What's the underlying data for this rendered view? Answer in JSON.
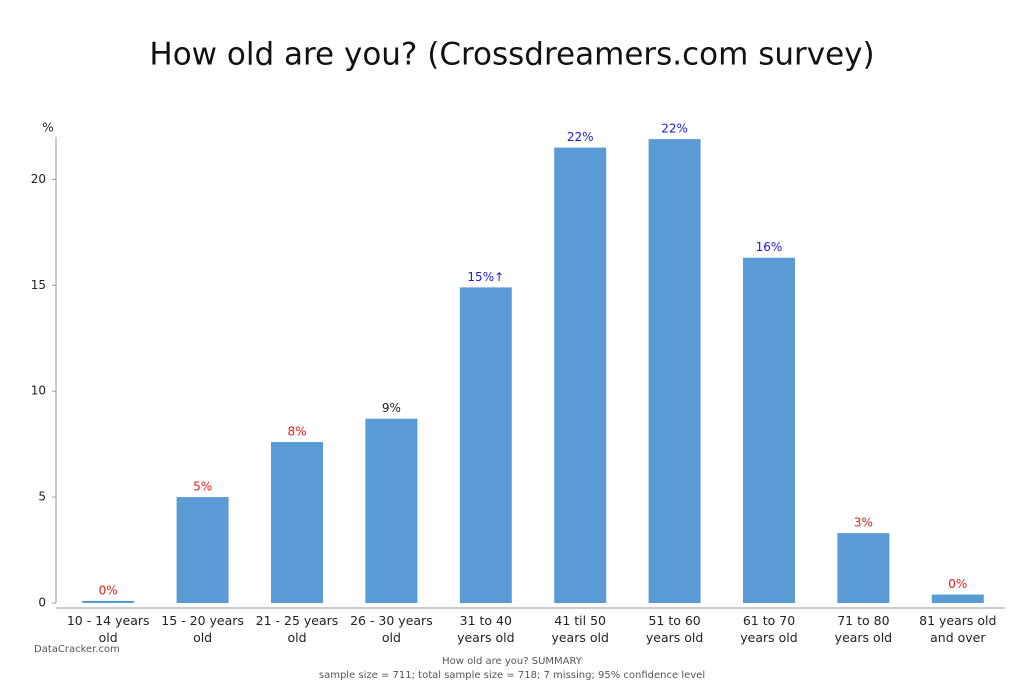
{
  "chart_data": {
    "type": "bar",
    "title": "How old are you? (Crossdreamers.com survey)",
    "y_label": "%",
    "categories": [
      "10 - 14 years old",
      "15 - 20 years old",
      "21 - 25 years old",
      "26 - 30 years old",
      "31 to 40 years old",
      "41 til 50 years old",
      "51 to 60 years old",
      "61 to 70 years old",
      "71 to 80 years old",
      "81 years old and over"
    ],
    "values": [
      0.1,
      5.0,
      7.6,
      8.7,
      14.9,
      21.5,
      21.9,
      16.3,
      3.3,
      0.4
    ],
    "value_labels": [
      "0%",
      "5%",
      "8%",
      "9%",
      "15%↑",
      "22%",
      "22%",
      "16%",
      "3%",
      "0%"
    ],
    "value_label_colors": [
      "#e02020",
      "#e02020",
      "#e02020",
      "#222222",
      "#1a1adf",
      "#1a1adf",
      "#1a1adf",
      "#1a1adf",
      "#e02020",
      "#e02020"
    ],
    "color": "#5b9bd5",
    "ylim": [
      0,
      22
    ],
    "yticks": [
      0,
      5,
      10,
      15,
      20
    ],
    "source": "DataCracker.com",
    "footer_title": "How old are you? SUMMARY",
    "footer_note": "sample size = 711; total sample size = 718; 7 missing; 95% confidence level"
  }
}
